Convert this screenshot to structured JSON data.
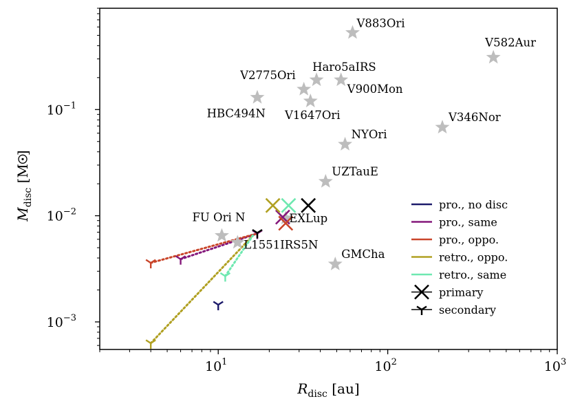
{
  "chart_data": {
    "type": "scatter",
    "xscale": "log",
    "yscale": "log",
    "xlim": [
      2,
      1000
    ],
    "ylim": [
      0.00055,
      0.9
    ],
    "xlabel": {
      "main": "R",
      "sub": "disc",
      "unit": "[au]"
    },
    "ylabel": {
      "main": "M",
      "sub": "disc",
      "unit": "[M",
      "unit_end": "]"
    },
    "xticks": [
      {
        "value": 10,
        "base": "10",
        "exp": "1"
      },
      {
        "value": 100,
        "base": "10",
        "exp": "2"
      },
      {
        "value": 1000,
        "base": "10",
        "exp": "3"
      }
    ],
    "yticks": [
      {
        "value": 0.001,
        "base": "10",
        "exp": "−3"
      },
      {
        "value": 0.01,
        "base": "10",
        "exp": "−2"
      },
      {
        "value": 0.1,
        "base": "10",
        "exp": "−1"
      }
    ],
    "observed": [
      {
        "name": "V883Ori",
        "x": 62,
        "y": 0.53,
        "lx": 6,
        "ly": -8,
        "anchor": "start"
      },
      {
        "name": "V582Aur",
        "x": 420,
        "y": 0.31,
        "lx": -12,
        "ly": -16,
        "anchor": "start"
      },
      {
        "name": "Haro5aIRS",
        "x": 38,
        "y": 0.19,
        "lx": -6,
        "ly": -13,
        "anchor": "start"
      },
      {
        "name": "V2775Ori",
        "x": 32,
        "y": 0.155,
        "lx": -12,
        "ly": -15,
        "anchor": "end"
      },
      {
        "name": "V900Mon",
        "x": 53,
        "y": 0.19,
        "lx": 9,
        "ly": 19,
        "anchor": "start"
      },
      {
        "name": "V1647Ori",
        "x": 35,
        "y": 0.12,
        "lx": 3,
        "ly": 26,
        "anchor": "middle"
      },
      {
        "name": "HBC494N",
        "x": 17,
        "y": 0.13,
        "lx": 12,
        "ly": 29,
        "anchor": "end"
      },
      {
        "name": "V346Nor",
        "x": 210,
        "y": 0.068,
        "lx": 9,
        "ly": -9,
        "anchor": "start"
      },
      {
        "name": "NYOri",
        "x": 56,
        "y": 0.047,
        "lx": 9,
        "ly": -9,
        "anchor": "start"
      },
      {
        "name": "UZTauE",
        "x": 43,
        "y": 0.021,
        "lx": 9,
        "ly": -9,
        "anchor": "start"
      },
      {
        "name": "EXLup",
        "x": 25,
        "y": 0.0095,
        "lx": 5,
        "ly": 6,
        "anchor": "start"
      },
      {
        "name": "FU Ori N",
        "x": 10.5,
        "y": 0.0065,
        "lx": -43,
        "ly": -21,
        "anchor": "start"
      },
      {
        "name": "L1551IRS5N",
        "x": 13,
        "y": 0.0056,
        "lx": 9,
        "ly": 9,
        "anchor": "start"
      },
      {
        "name": "GMCha",
        "x": 49,
        "y": 0.0035,
        "lx": 9,
        "ly": -9,
        "anchor": "start"
      }
    ],
    "series": [
      {
        "name": "pro., no disc",
        "color": "#1c1a6a",
        "secondary": [
          {
            "x": 10,
            "y": 0.00145
          }
        ],
        "primary": []
      },
      {
        "name": "pro., same",
        "color": "#84177a",
        "secondary": [
          {
            "x": 6,
            "y": 0.0039
          },
          {
            "x": 17,
            "y": 0.0068
          }
        ],
        "primary": [
          {
            "x": 24,
            "y": 0.0097
          }
        ],
        "dotted": [
          [
            {
              "x": 6,
              "y": 0.0039
            },
            {
              "x": 17,
              "y": 0.0068
            }
          ]
        ]
      },
      {
        "name": "pro., oppo.",
        "color": "#c9452a",
        "secondary": [
          {
            "x": 4,
            "y": 0.0036
          }
        ],
        "primary": [
          {
            "x": 25,
            "y": 0.0085
          }
        ],
        "dotted": [
          [
            {
              "x": 4,
              "y": 0.0036
            },
            {
              "x": 17,
              "y": 0.0068
            }
          ]
        ]
      },
      {
        "name": "retro., oppo.",
        "color": "#b0a022",
        "secondary": [
          {
            "x": 4,
            "y": 0.00063
          }
        ],
        "primary": [
          {
            "x": 21,
            "y": 0.0125
          }
        ],
        "dotted": [
          [
            {
              "x": 4,
              "y": 0.00063
            },
            {
              "x": 16,
              "y": 0.0065
            }
          ]
        ]
      },
      {
        "name": "retro., same",
        "color": "#6ee8b0",
        "secondary": [
          {
            "x": 11,
            "y": 0.0027
          }
        ],
        "primary": [
          {
            "x": 26,
            "y": 0.0125
          }
        ],
        "dotted": [
          [
            {
              "x": 11,
              "y": 0.0027
            },
            {
              "x": 16,
              "y": 0.0065
            }
          ]
        ]
      },
      {
        "name": "black pair",
        "color": "#000000",
        "inLegend": false,
        "secondary": [
          {
            "x": 17,
            "y": 0.0069
          }
        ],
        "primary": [
          {
            "x": 34,
            "y": 0.0125
          }
        ]
      }
    ],
    "legend": {
      "position": "bottom-right",
      "entries": [
        {
          "label": "pro., no disc",
          "kind": "line",
          "color": "#1c1a6a"
        },
        {
          "label": "pro., same",
          "kind": "line",
          "color": "#84177a"
        },
        {
          "label": "pro., oppo.",
          "kind": "line",
          "color": "#c9452a"
        },
        {
          "label": "retro., oppo.",
          "kind": "line",
          "color": "#b0a022"
        },
        {
          "label": "retro., same",
          "kind": "line",
          "color": "#6ee8b0"
        },
        {
          "label": "primary",
          "kind": "x-marker",
          "color": "#000000"
        },
        {
          "label": "secondary",
          "kind": "y-marker",
          "color": "#000000"
        }
      ]
    },
    "star_color": "#bdbdbd"
  }
}
